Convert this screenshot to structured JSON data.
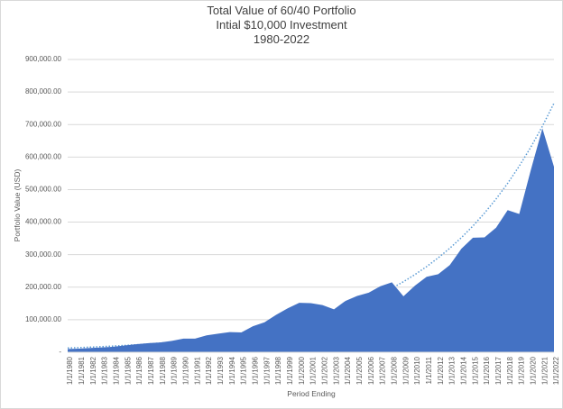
{
  "chart_data": {
    "type": "area",
    "title": [
      "Total Value of 60/40 Portfolio",
      "Intial $10,000 Investment",
      "1980-2022"
    ],
    "y_label": "Portfolio Value (USD)",
    "x_label": "Period Ending",
    "categories": [
      "1/1/1980",
      "1/1/1981",
      "1/1/1982",
      "1/1/1983",
      "1/1/1984",
      "1/1/1985",
      "1/1/1986",
      "1/1/1987",
      "1/1/1988",
      "1/1/1989",
      "1/1/1990",
      "1/1/1991",
      "1/1/1992",
      "1/1/1993",
      "1/1/1994",
      "1/1/1995",
      "1/1/1996",
      "1/1/1997",
      "1/1/1998",
      "1/1/1999",
      "1/1/2000",
      "1/1/2001",
      "1/1/2002",
      "1/1/2003",
      "1/1/2004",
      "1/1/2005",
      "1/1/2006",
      "1/1/2007",
      "1/1/2008",
      "1/1/2009",
      "1/1/2010",
      "1/1/2011",
      "1/1/2012",
      "1/1/2013",
      "1/1/2014",
      "1/1/2015",
      "1/1/2016",
      "1/1/2017",
      "1/1/2018",
      "1/1/2019",
      "1/1/2020",
      "1/1/2021",
      "1/1/2022"
    ],
    "values": [
      10000,
      11000,
      13000,
      15000,
      17000,
      21000,
      25000,
      28000,
      30000,
      35000,
      42000,
      42000,
      52000,
      57000,
      62000,
      61000,
      80000,
      92000,
      115000,
      135000,
      152000,
      151000,
      145000,
      132000,
      158000,
      173000,
      183000,
      203000,
      215000,
      172000,
      205000,
      232000,
      240000,
      268000,
      318000,
      352000,
      353000,
      383000,
      437000,
      425000,
      560000,
      688000,
      570000
    ],
    "color": "#4472c4",
    "trendline": {
      "color": "#5b9bd5",
      "values": [
        13000,
        14325,
        15785,
        17393,
        19166,
        21119,
        23271,
        25642,
        28255,
        31134,
        34307,
        37803,
        41655,
        45900,
        50577,
        55731,
        61410,
        67668,
        74563,
        82161,
        90533,
        99759,
        109925,
        121126,
        133469,
        147070,
        162057,
        178571,
        196767,
        216818,
        238912,
        263258,
        290084,
        319643,
        352215,
        388106,
        427655,
        471233,
        519252,
        572164,
        630469,
        694716,
        765507
      ]
    },
    "ylim": [
      0,
      900000
    ],
    "yticks": [
      {
        "value": 0,
        "label": "-"
      },
      {
        "value": 100000,
        "label": "100,000.00"
      },
      {
        "value": 200000,
        "label": "200,000.00"
      },
      {
        "value": 300000,
        "label": "300,000.00"
      },
      {
        "value": 400000,
        "label": "400,000.00"
      },
      {
        "value": 500000,
        "label": "500,000.00"
      },
      {
        "value": 600000,
        "label": "600,000.00"
      },
      {
        "value": 700000,
        "label": "700,000.00"
      },
      {
        "value": 800000,
        "label": "800,000.00"
      },
      {
        "value": 900000,
        "label": "900,000.00"
      }
    ],
    "grid": true
  }
}
